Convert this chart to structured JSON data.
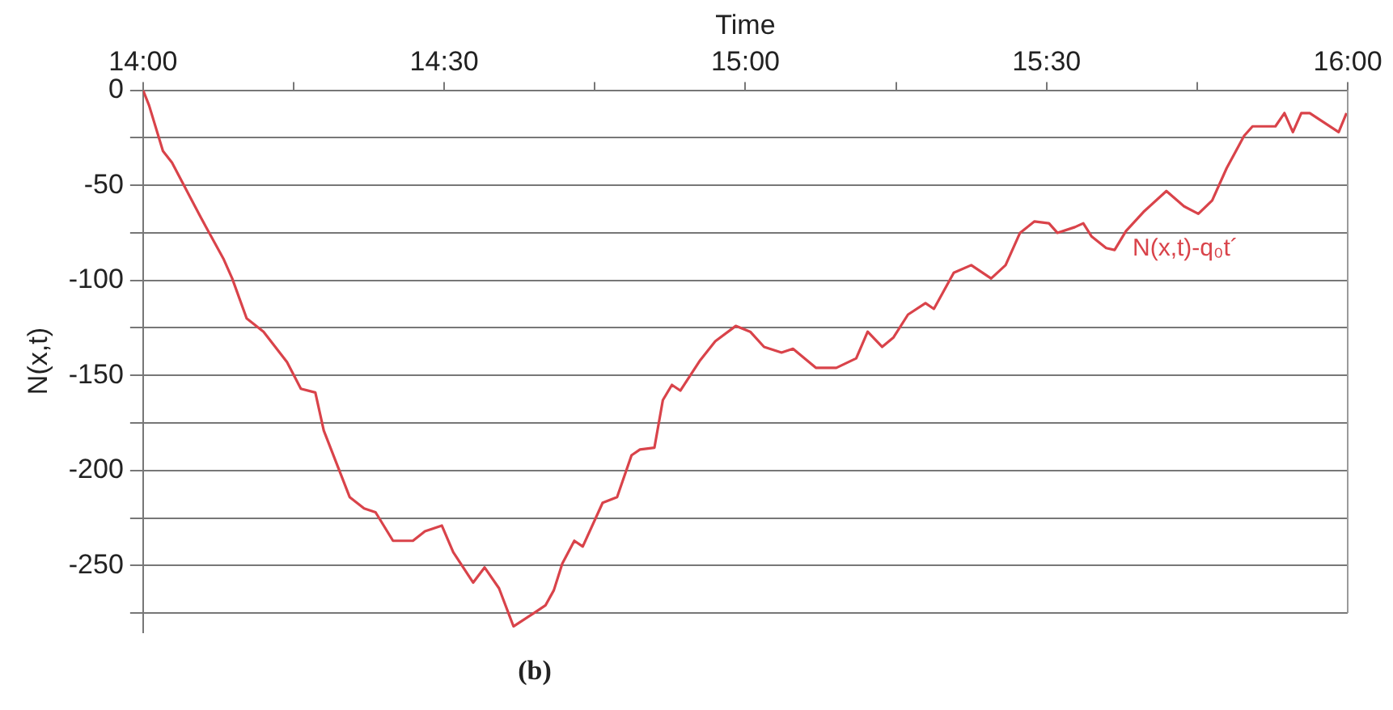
{
  "chart_data": {
    "type": "line",
    "xlabel": "Time",
    "ylabel": "N(x,t)",
    "x": [
      14.0,
      14.01,
      14.033,
      14.048,
      14.096,
      14.134,
      14.148,
      14.172,
      14.2,
      14.239,
      14.262,
      14.286,
      14.3,
      14.343,
      14.367,
      14.386,
      14.415,
      14.448,
      14.468,
      14.496,
      14.515,
      14.548,
      14.567,
      14.591,
      14.615,
      14.649,
      14.668,
      14.682,
      14.696,
      14.716,
      14.73,
      14.763,
      14.787,
      14.811,
      14.825,
      14.849,
      14.863,
      14.878,
      14.892,
      14.925,
      14.95,
      14.984,
      15.008,
      15.031,
      15.06,
      15.079,
      15.117,
      15.151,
      15.184,
      15.203,
      15.227,
      15.246,
      15.27,
      15.299,
      15.313,
      15.346,
      15.375,
      15.408,
      15.432,
      15.456,
      15.48,
      15.504,
      15.518,
      15.547,
      15.561,
      15.575,
      15.599,
      15.613,
      15.632,
      15.661,
      15.699,
      15.728,
      15.752,
      15.775,
      15.799,
      15.828,
      15.842,
      15.88,
      15.895,
      15.909,
      15.923,
      15.937,
      15.985,
      15.998
    ],
    "series": [
      {
        "color": "#d9434a",
        "values": [
          0,
          -8,
          -32,
          -38,
          -67,
          -89,
          -99,
          -120,
          -127,
          -143,
          -157,
          -159,
          -179,
          -214,
          -220,
          -222,
          -237,
          -237,
          -232,
          -229,
          -243,
          -259,
          -251,
          -262,
          -282,
          -275,
          -271,
          -263,
          -249,
          -237,
          -240,
          -217,
          -214,
          -192,
          -189,
          -188,
          -163,
          -155,
          -158,
          -142,
          -132,
          -124,
          -127,
          -135,
          -138,
          -136,
          -146,
          -146,
          -141,
          -127,
          -135,
          -130,
          -118,
          -112,
          -115,
          -96,
          -92,
          -99,
          -92,
          -75,
          -69,
          -70,
          -75,
          -72,
          -70,
          -77,
          -83,
          -84,
          -74,
          -64,
          -53,
          -61,
          -65,
          -58,
          -41,
          -24,
          -19,
          -19,
          -12,
          -22,
          -12,
          -12,
          -22,
          -12
        ]
      }
    ],
    "xlim": [
      14,
      16
    ],
    "xticks": [
      {
        "value": 14,
        "label": "14:00"
      },
      {
        "value": 14.25,
        "label": null
      },
      {
        "value": 14.5,
        "label": "14:30"
      },
      {
        "value": 14.75,
        "label": null
      },
      {
        "value": 15,
        "label": "15:00"
      },
      {
        "value": 15.25,
        "label": null
      },
      {
        "value": 15.5,
        "label": "15:30"
      },
      {
        "value": 15.75,
        "label": null
      },
      {
        "value": 16,
        "label": "16:00"
      }
    ],
    "ylim": [
      -285,
      0
    ],
    "yticks": [
      0,
      {
        "value": -25,
        "label": null
      },
      -50,
      {
        "value": -75,
        "label": null
      },
      -100,
      {
        "value": -125,
        "label": null
      },
      -150,
      {
        "value": -175,
        "label": null
      },
      -200,
      {
        "value": -225,
        "label": null
      },
      -250,
      {
        "value": -275,
        "label": null
      }
    ],
    "grid": "y",
    "legend": false,
    "marker": "none",
    "line_style": "solid",
    "annotations": [
      "N(x,t)-q₀t´",
      "(b)"
    ]
  }
}
